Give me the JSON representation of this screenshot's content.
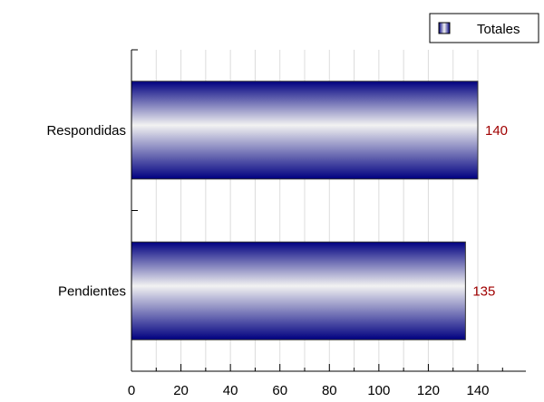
{
  "chart_data": {
    "type": "bar",
    "orientation": "horizontal",
    "categories": [
      "Respondidas",
      "Pendientes"
    ],
    "series": [
      {
        "name": "Totales",
        "values": [
          140,
          135
        ]
      }
    ],
    "xlim": [
      0,
      150
    ],
    "x_ticks": [
      0,
      20,
      40,
      60,
      80,
      100,
      120,
      140
    ],
    "grid": "vertical",
    "legend": "top-right",
    "title": "",
    "xlabel": "",
    "ylabel": ""
  },
  "colors": {
    "bar_dark": "#000080",
    "bar_light": "#f2f2f2",
    "data_label": "#a00000",
    "axis": "#000000",
    "grid": "#dcdcdc"
  }
}
